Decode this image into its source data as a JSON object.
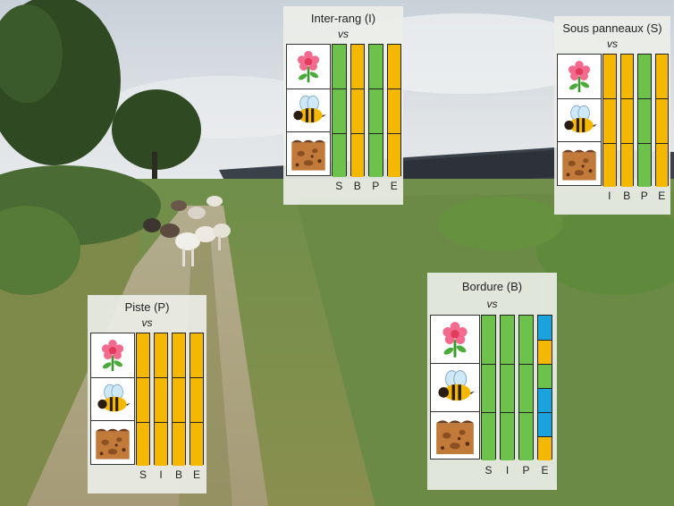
{
  "colors": {
    "green": "#6cc24a",
    "orange": "#f5b800",
    "blue": "#1ba3dd"
  },
  "icons": [
    "flower-icon",
    "bee-icon",
    "soil-icon"
  ],
  "panels": [
    {
      "id": "inter-rang",
      "title": "Inter-rang (I)",
      "vs": "vs",
      "axis_labels": [
        "S",
        "B",
        "P",
        "E"
      ],
      "bars": [
        [
          "green",
          "green",
          "green"
        ],
        [
          "orange",
          "orange",
          "orange"
        ],
        [
          "green",
          "green",
          "green"
        ],
        [
          "orange",
          "orange",
          "orange"
        ]
      ]
    },
    {
      "id": "sous-panneaux",
      "title": "Sous panneaux (S)",
      "vs": "vs",
      "axis_labels": [
        "I",
        "B",
        "P",
        "E"
      ],
      "bars": [
        [
          "orange",
          "orange",
          "orange"
        ],
        [
          "orange",
          "orange",
          "orange"
        ],
        [
          "green",
          "green",
          "green"
        ],
        [
          "orange",
          "orange",
          "orange"
        ]
      ]
    },
    {
      "id": "piste",
      "title": "Piste (P)",
      "vs": "vs",
      "axis_labels": [
        "S",
        "I",
        "B",
        "E"
      ],
      "bars": [
        [
          "orange",
          "orange",
          "orange"
        ],
        [
          "orange",
          "orange",
          "orange"
        ],
        [
          "orange",
          "orange",
          "orange"
        ],
        [
          "orange",
          "orange",
          "orange"
        ]
      ]
    },
    {
      "id": "bordure",
      "title": "Bordure  (B)",
      "vs": "vs",
      "axis_labels": [
        "S",
        "I",
        "P",
        "E"
      ],
      "bars": [
        [
          "green",
          "green",
          "green"
        ],
        [
          "green",
          "green",
          "green"
        ],
        [
          "green",
          "green",
          "green"
        ],
        [
          "blue-orange",
          "green-blue",
          "blue-orange"
        ]
      ]
    }
  ]
}
